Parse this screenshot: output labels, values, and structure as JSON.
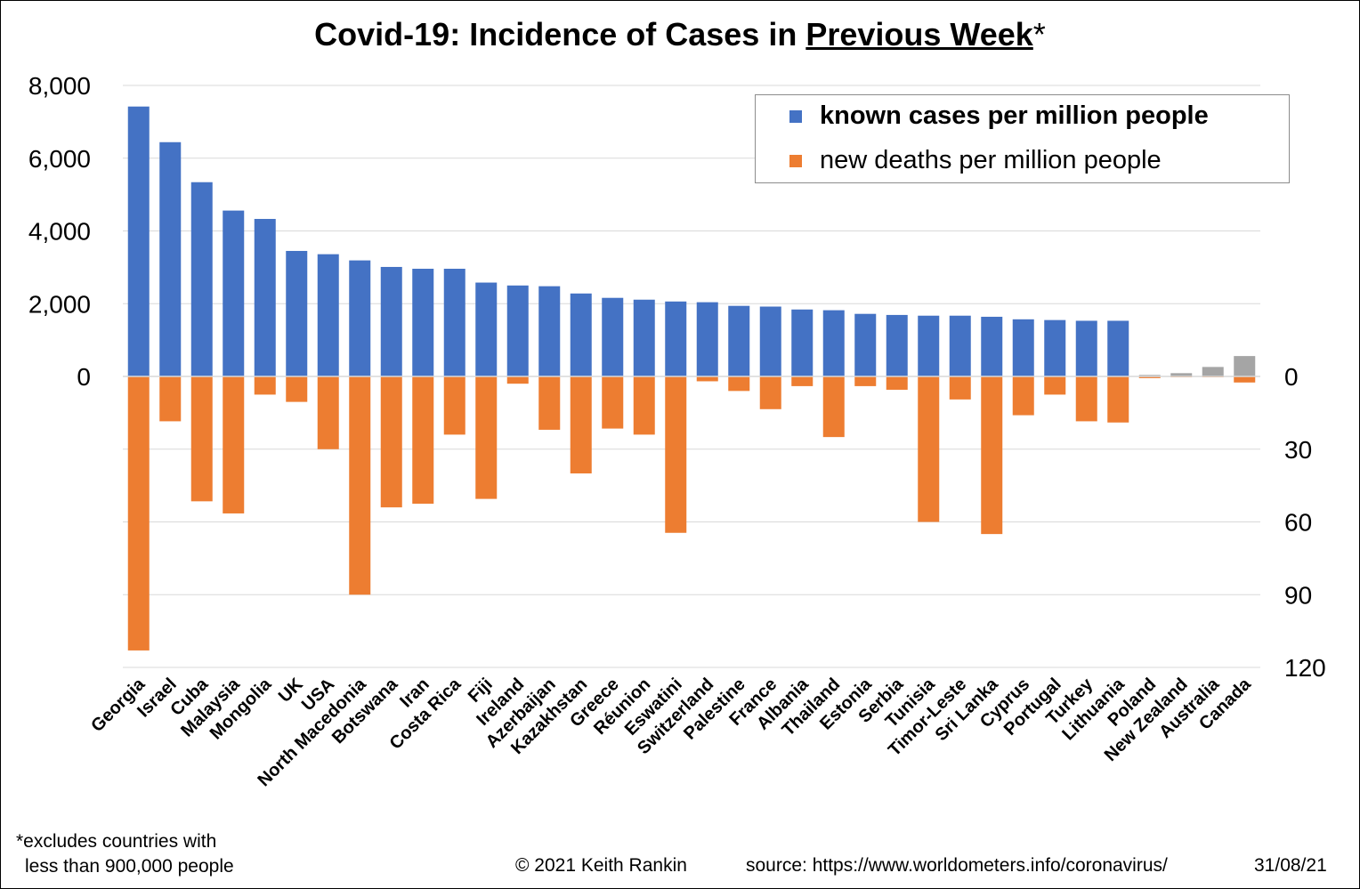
{
  "title": {
    "main": "Covid-19: Incidence of Cases in ",
    "emphasis": "Previous Week",
    "suffix": "*"
  },
  "footnote": {
    "line1": "*excludes countries with",
    "line2": "less than 900,000 people"
  },
  "credits": {
    "copyright": "© 2021   Keith Rankin",
    "source": "source: https://www.worldometers.info/coronavirus/",
    "date": "31/08/21"
  },
  "colors": {
    "cases": "#4472C4",
    "deaths": "#ED7D31",
    "highlight": "#A5A5A5",
    "gridline": "#D9D9D9",
    "axis": "#000000"
  },
  "chart_data": {
    "type": "bar",
    "title": "Covid-19: Incidence of Cases in Previous Week*",
    "categories": [
      "Georgia",
      "Israel",
      "Cuba",
      "Malaysia",
      "Mongolia",
      "UK",
      "USA",
      "North Macedonia",
      "Botswana",
      "Iran",
      "Costa Rica",
      "Fiji",
      "Ireland",
      "Azerbaijan",
      "Kazakhstan",
      "Greece",
      "Réunion",
      "Eswatini",
      "Switzerland",
      "Palestine",
      "France",
      "Albania",
      "Thailand",
      "Estonia",
      "Serbia",
      "Tunisia",
      "Timor-Leste",
      "Sri Lanka",
      "Cyprus",
      "Portugal",
      "Turkey",
      "Lithuania",
      "Poland",
      "New Zealand",
      "Australia",
      "Canada"
    ],
    "highlighted_categories": [
      "Poland",
      "New Zealand",
      "Australia",
      "Canada"
    ],
    "series": [
      {
        "name": "known cases per million people",
        "axis": "left",
        "direction": "up",
        "values": [
          7420,
          6440,
          5340,
          4560,
          4330,
          3450,
          3360,
          3190,
          3010,
          2960,
          2960,
          2580,
          2500,
          2480,
          2280,
          2160,
          2110,
          2060,
          2040,
          1940,
          1920,
          1840,
          1820,
          1720,
          1690,
          1670,
          1670,
          1640,
          1570,
          1550,
          1530,
          1530,
          40,
          90,
          260,
          560
        ]
      },
      {
        "name": "new deaths per million people",
        "axis": "right",
        "direction": "down",
        "values": [
          113,
          18.5,
          51.5,
          56.5,
          7.5,
          10.5,
          30,
          90,
          54,
          52.5,
          24,
          50.5,
          3,
          22,
          40,
          21.5,
          24,
          64.5,
          2,
          6,
          13.5,
          4,
          25,
          4,
          5.5,
          60,
          9.5,
          65,
          16,
          7.5,
          18.5,
          19,
          0.7,
          0.3,
          0.3,
          2.5
        ]
      }
    ],
    "y_left": {
      "ticks": [
        "8,000",
        "6,000",
        "4,000",
        "2,000",
        "0"
      ],
      "range": [
        0,
        8000
      ]
    },
    "y_right": {
      "ticks": [
        "0",
        "30",
        "60",
        "90",
        "120"
      ],
      "range": [
        0,
        120
      ],
      "inverted": true
    },
    "xlabel": "",
    "grid": true,
    "legend_position": "top-right"
  }
}
